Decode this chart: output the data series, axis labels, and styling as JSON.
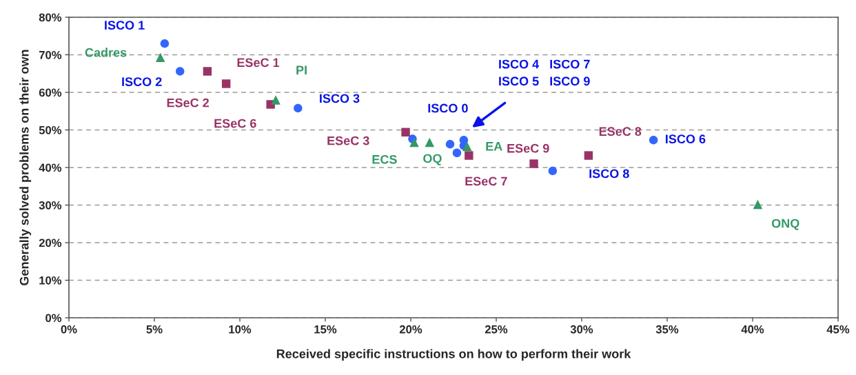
{
  "chart_data": {
    "type": "scatter",
    "xlabel": "Received specific instructions on how to perform their work",
    "ylabel": "Generally solved problems on their own",
    "xlim": [
      0,
      45
    ],
    "ylim": [
      0,
      80
    ],
    "xticks": [
      {
        "value": 0,
        "label": "0%"
      },
      {
        "value": 5,
        "label": "5%"
      },
      {
        "value": 10,
        "label": "10%"
      },
      {
        "value": 15,
        "label": "15%"
      },
      {
        "value": 20,
        "label": "20%"
      },
      {
        "value": 25,
        "label": "25%"
      },
      {
        "value": 30,
        "label": "30%"
      },
      {
        "value": 35,
        "label": "35%"
      },
      {
        "value": 40,
        "label": "40%"
      },
      {
        "value": 45,
        "label": "45%"
      }
    ],
    "yticks": [
      {
        "value": 0,
        "label": "0%"
      },
      {
        "value": 10,
        "label": "10%"
      },
      {
        "value": 20,
        "label": "20%"
      },
      {
        "value": 30,
        "label": "30%"
      },
      {
        "value": 40,
        "label": "40%"
      },
      {
        "value": 50,
        "label": "50%"
      },
      {
        "value": 60,
        "label": "60%"
      },
      {
        "value": 70,
        "label": "70%"
      },
      {
        "value": 80,
        "label": "80%"
      }
    ],
    "grid": "y",
    "legend": false,
    "series": [
      {
        "color": "#3366ff",
        "marker": "circle",
        "x": [
          5.6,
          6.5,
          13.4,
          20.1,
          22.3,
          22.7,
          23.1,
          23.1,
          28.3,
          34.2
        ],
        "values": [
          73.0,
          65.6,
          55.8,
          47.6,
          46.2,
          43.9,
          47.3,
          45.8,
          39.1,
          47.3
        ]
      },
      {
        "color": "#993366",
        "marker": "square",
        "x": [
          8.1,
          9.2,
          11.8,
          19.7,
          23.4,
          27.2,
          30.4
        ],
        "values": [
          65.6,
          62.3,
          56.8,
          49.4,
          43.2,
          41.0,
          43.2
        ]
      },
      {
        "color": "#339966",
        "marker": "triangle",
        "x": [
          5.35,
          12.1,
          20.2,
          21.1,
          23.3,
          40.3
        ],
        "values": [
          69.3,
          58.0,
          46.7,
          46.7,
          45.6,
          30.2
        ]
      }
    ],
    "annotations": [
      {
        "text": "ISCO 1",
        "x": 5.6,
        "y": 73.0
      },
      {
        "text": "Cadres",
        "x": 5.35,
        "y": 69.3
      },
      {
        "text": "ISCO 2",
        "x": 6.5,
        "y": 65.6
      },
      {
        "text": "ESeC 1",
        "x": 8.1,
        "y": 65.6
      },
      {
        "text": "ESeC 2",
        "x": 9.2,
        "y": 62.3
      },
      {
        "text": "PI",
        "x": 12.1,
        "y": 58.0
      },
      {
        "text": "ESeC 6",
        "x": 11.8,
        "y": 56.8
      },
      {
        "text": "ISCO 3",
        "x": 13.4,
        "y": 55.8
      },
      {
        "text": "ISCO 0",
        "x": 20.1,
        "y": 47.6
      },
      {
        "text": "ESeC 3",
        "x": 19.7,
        "y": 49.4
      },
      {
        "text": "ECS",
        "x": 20.2,
        "y": 46.7
      },
      {
        "text": "OQ",
        "x": 21.1,
        "y": 46.7
      },
      {
        "text": "EA",
        "x": 23.3,
        "y": 45.6
      },
      {
        "text": "ESeC 7",
        "x": 23.4,
        "y": 43.2
      },
      {
        "text": "ESeC 9",
        "x": 27.2,
        "y": 41.0
      },
      {
        "text": "ISCO 8",
        "x": 28.3,
        "y": 39.1
      },
      {
        "text": "ESeC 8",
        "x": 30.4,
        "y": 43.2
      },
      {
        "text": "ISCO 6",
        "x": 34.2,
        "y": 47.3
      },
      {
        "text": "ONQ",
        "x": 40.3,
        "y": 30.2
      },
      "ISCO 4   ISCO 7\nISCO 5   ISCO 9"
    ]
  }
}
